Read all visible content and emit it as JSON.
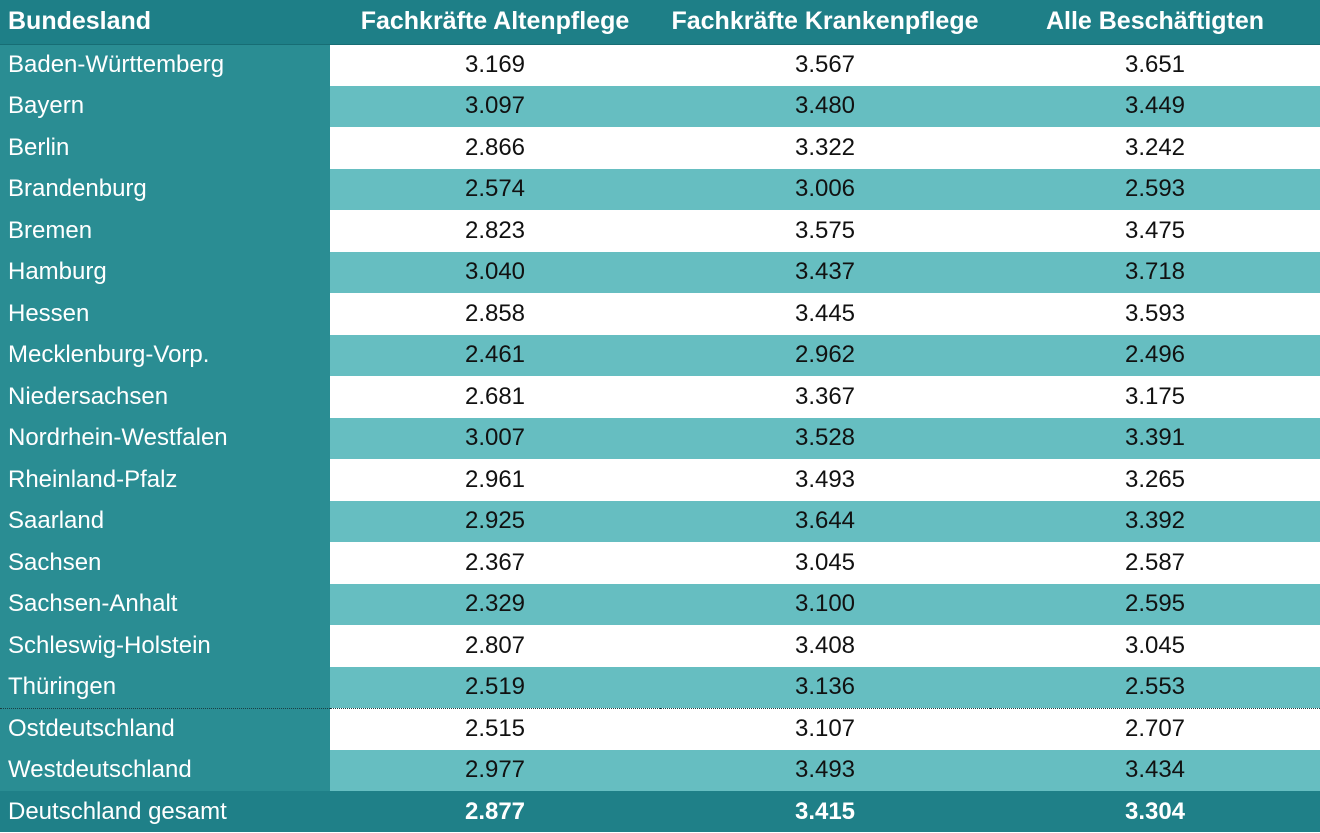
{
  "colors": {
    "header_bg": "#1e7f87",
    "label_bg": "#2a8d93",
    "stripe_bg": "#66bec1",
    "total_bg": "#1f8088"
  },
  "chart_data": {
    "type": "table",
    "columns": [
      "Bundesland",
      "Fachkräfte Altenpflege",
      "Fachkräfte Krankenpflege",
      "Alle Beschäftigten"
    ],
    "rows": [
      {
        "label": "Baden-Württemberg",
        "values": [
          "3.169",
          "3.567",
          "3.651"
        ]
      },
      {
        "label": "Bayern",
        "values": [
          "3.097",
          "3.480",
          "3.449"
        ]
      },
      {
        "label": "Berlin",
        "values": [
          "2.866",
          "3.322",
          "3.242"
        ]
      },
      {
        "label": "Brandenburg",
        "values": [
          "2.574",
          "3.006",
          "2.593"
        ]
      },
      {
        "label": "Bremen",
        "values": [
          "2.823",
          "3.575",
          "3.475"
        ]
      },
      {
        "label": "Hamburg",
        "values": [
          "3.040",
          "3.437",
          "3.718"
        ]
      },
      {
        "label": "Hessen",
        "values": [
          "2.858",
          "3.445",
          "3.593"
        ]
      },
      {
        "label": "Mecklenburg-Vorp.",
        "values": [
          "2.461",
          "2.962",
          "2.496"
        ]
      },
      {
        "label": "Niedersachsen",
        "values": [
          "2.681",
          "3.367",
          "3.175"
        ]
      },
      {
        "label": "Nordrhein-Westfalen",
        "values": [
          "3.007",
          "3.528",
          "3.391"
        ]
      },
      {
        "label": "Rheinland-Pfalz",
        "values": [
          "2.961",
          "3.493",
          "3.265"
        ]
      },
      {
        "label": "Saarland",
        "values": [
          "2.925",
          "3.644",
          "3.392"
        ]
      },
      {
        "label": "Sachsen",
        "values": [
          "2.367",
          "3.045",
          "2.587"
        ]
      },
      {
        "label": "Sachsen-Anhalt",
        "values": [
          "2.329",
          "3.100",
          "2.595"
        ]
      },
      {
        "label": "Schleswig-Holstein",
        "values": [
          "2.807",
          "3.408",
          "3.045"
        ]
      },
      {
        "label": "Thüringen",
        "values": [
          "2.519",
          "3.136",
          "2.553"
        ]
      },
      {
        "label": "Ostdeutschland",
        "values": [
          "2.515",
          "3.107",
          "2.707"
        ]
      },
      {
        "label": "Westdeutschland",
        "values": [
          "2.977",
          "3.493",
          "3.434"
        ]
      }
    ],
    "total": {
      "label": "Deutschland gesamt",
      "values": [
        "2.877",
        "3.415",
        "3.304"
      ]
    }
  }
}
